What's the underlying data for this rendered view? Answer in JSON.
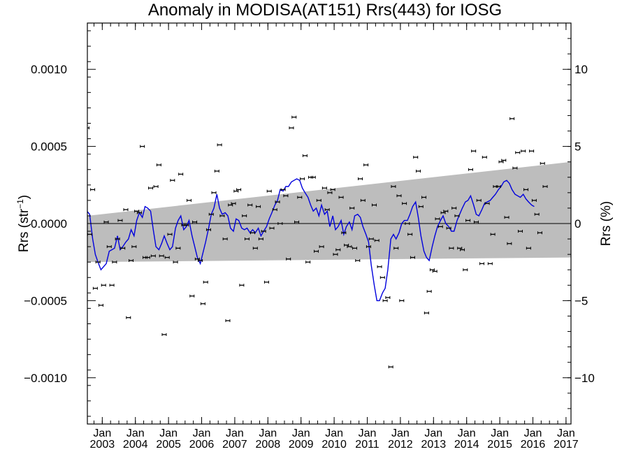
{
  "chart_data": {
    "type": "scatter",
    "title": "Anomaly in MODISA(AT151) Rrs(443) for IOSG",
    "ylabel_left": {
      "base": "Rrs (str",
      "sup": "−1",
      "close": ")"
    },
    "ylabel_right": "Rrs (%)",
    "ylim_left": [
      -0.0013,
      0.0013
    ],
    "ylim_right": [
      -13,
      13
    ],
    "xlim": [
      2002.55,
      2017.15
    ],
    "left_ticks": [
      {
        "value": 0.001,
        "label": "0.0010"
      },
      {
        "value": 0.0005,
        "label": "0.0005"
      },
      {
        "value": 0.0,
        "label": "0.0000"
      },
      {
        "value": -0.0005,
        "label": "−0.0005"
      },
      {
        "value": -0.001,
        "label": "−0.0010"
      }
    ],
    "right_ticks": [
      {
        "value": 10,
        "label": "10"
      },
      {
        "value": 5,
        "label": "5"
      },
      {
        "value": 0,
        "label": "0"
      },
      {
        "value": -5,
        "label": "−5"
      },
      {
        "value": -10,
        "label": "−10"
      }
    ],
    "x_ticks": [
      {
        "value": 2003.0,
        "month": "Jan",
        "year": "2003"
      },
      {
        "value": 2004.0,
        "month": "Jan",
        "year": "2004"
      },
      {
        "value": 2005.0,
        "month": "Jan",
        "year": "2005"
      },
      {
        "value": 2006.0,
        "month": "Jan",
        "year": "2006"
      },
      {
        "value": 2007.0,
        "month": "Jan",
        "year": "2007"
      },
      {
        "value": 2008.0,
        "month": "Jan",
        "year": "2008"
      },
      {
        "value": 2009.0,
        "month": "Jan",
        "year": "2009"
      },
      {
        "value": 2010.0,
        "month": "Jan",
        "year": "2010"
      },
      {
        "value": 2011.0,
        "month": "Jan",
        "year": "2011"
      },
      {
        "value": 2012.0,
        "month": "Jan",
        "year": "2012"
      },
      {
        "value": 2013.0,
        "month": "Jan",
        "year": "2013"
      },
      {
        "value": 2014.0,
        "month": "Jan",
        "year": "2014"
      },
      {
        "value": 2015.0,
        "month": "Jan",
        "year": "2015"
      },
      {
        "value": 2016.0,
        "month": "Jan",
        "year": "2016"
      },
      {
        "value": 2017.0,
        "month": "Jan",
        "year": "2017"
      }
    ],
    "grey_band": {
      "upper": [
        [
          2002.55,
          5e-05
        ],
        [
          2017.15,
          0.0004
        ]
      ],
      "lower": [
        [
          2002.55,
          -0.00025
        ],
        [
          2017.15,
          -0.00022
        ]
      ]
    },
    "zero_line": 0,
    "colors": {
      "band": "#bdbdbd",
      "running_mean": "#0000dd",
      "points": "#000000"
    },
    "monthly_points": [
      [
        2002.54,
        0.00062
      ],
      [
        2002.62,
        -7e-05
      ],
      [
        2002.71,
        0.00022
      ],
      [
        2002.79,
        -0.00042
      ],
      [
        2002.87,
        -0.00025
      ],
      [
        2002.96,
        -0.00053
      ],
      [
        2003.04,
        -0.0004
      ],
      [
        2003.12,
        1e-05
      ],
      [
        2003.21,
        -0.00015
      ],
      [
        2003.29,
        -0.0004
      ],
      [
        2003.37,
        -0.00025
      ],
      [
        2003.46,
        -0.0001
      ],
      [
        2003.54,
        2e-05
      ],
      [
        2003.62,
        -0.00016
      ],
      [
        2003.71,
        9e-05
      ],
      [
        2003.79,
        -0.00061
      ],
      [
        2003.87,
        -0.00024
      ],
      [
        2003.96,
        -0.00015
      ],
      [
        2004.04,
        8e-05
      ],
      [
        2004.12,
        7e-05
      ],
      [
        2004.21,
        0.0005
      ],
      [
        2004.29,
        -0.00022
      ],
      [
        2004.37,
        -0.00022
      ],
      [
        2004.46,
        0.00023
      ],
      [
        2004.54,
        -0.00021
      ],
      [
        2004.62,
        0.00024
      ],
      [
        2004.71,
        0.00038
      ],
      [
        2004.79,
        -0.00021
      ],
      [
        2004.87,
        -0.00072
      ],
      [
        2004.96,
        -0.00022
      ],
      [
        2005.04,
        -7e-05
      ],
      [
        2005.12,
        0.00028
      ],
      [
        2005.21,
        -0.00025
      ],
      [
        2005.29,
        -0.00016
      ],
      [
        2005.37,
        0.00032
      ],
      [
        2005.46,
        -1e-05
      ],
      [
        2005.54,
        -1e-05
      ],
      [
        2005.62,
        0.00015
      ],
      [
        2005.71,
        -0.00047
      ],
      [
        2005.79,
        1e-05
      ],
      [
        2005.87,
        -0.00023
      ],
      [
        2005.96,
        -0.00024
      ],
      [
        2006.04,
        -0.00052
      ],
      [
        2006.12,
        -0.00038
      ],
      [
        2006.21,
        -4e-05
      ],
      [
        2006.29,
        6e-05
      ],
      [
        2006.37,
        0.0002
      ],
      [
        2006.46,
        0.00034
      ],
      [
        2006.54,
        0.00051
      ],
      [
        2006.62,
        5e-05
      ],
      [
        2006.71,
        -0.0001
      ],
      [
        2006.79,
        -0.00063
      ],
      [
        2006.87,
        0.00012
      ],
      [
        2006.96,
        0.00013
      ],
      [
        2007.04,
        0.00021
      ],
      [
        2007.12,
        0.00022
      ],
      [
        2007.21,
        -0.0004
      ],
      [
        2007.29,
        5e-05
      ],
      [
        2007.37,
        -0.0001
      ],
      [
        2007.46,
        0.00012
      ],
      [
        2007.54,
        -6e-05
      ],
      [
        2007.62,
        -0.00016
      ],
      [
        2007.71,
        0.00011
      ],
      [
        2007.79,
        -0.0001
      ],
      [
        2007.87,
        -5e-05
      ],
      [
        2007.96,
        -0.00038
      ],
      [
        2008.04,
        0.00021
      ],
      [
        2008.12,
        -3e-05
      ],
      [
        2008.21,
        9e-05
      ],
      [
        2008.29,
        0.00014
      ],
      [
        2008.37,
        0.0
      ],
      [
        2008.46,
        0.00022
      ],
      [
        2008.54,
        0.00018
      ],
      [
        2008.62,
        -0.00023
      ],
      [
        2008.71,
        0.00062
      ],
      [
        2008.79,
        0.00069
      ],
      [
        2008.87,
        1e-05
      ],
      [
        2008.96,
        0.00017
      ],
      [
        2009.04,
        0.00029
      ],
      [
        2009.12,
        0.00044
      ],
      [
        2009.21,
        -0.00025
      ],
      [
        2009.29,
        0.0003
      ],
      [
        2009.37,
        0.0003
      ],
      [
        2009.46,
        -0.00018
      ],
      [
        2009.54,
        0.00015
      ],
      [
        2009.62,
        -0.00015
      ],
      [
        2009.71,
        0.00023
      ],
      [
        2009.79,
        9e-05
      ],
      [
        2009.87,
        0.0002
      ],
      [
        2009.96,
        0.00022
      ],
      [
        2010.04,
        -0.0002
      ],
      [
        2010.12,
        -0.00017
      ],
      [
        2010.21,
        0.00017
      ],
      [
        2010.29,
        -6e-05
      ],
      [
        2010.37,
        -0.00014
      ],
      [
        2010.46,
        -0.00015
      ],
      [
        2010.54,
        0.0001
      ],
      [
        2010.62,
        -0.00016
      ],
      [
        2010.71,
        -0.00024
      ],
      [
        2010.79,
        0.00029
      ],
      [
        2010.87,
        0.00015
      ],
      [
        2010.96,
        0.00038
      ],
      [
        2011.04,
        -0.00015
      ],
      [
        2011.12,
        -0.0001
      ],
      [
        2011.21,
        0.00012
      ],
      [
        2011.29,
        -0.00011
      ],
      [
        2011.37,
        -0.00028
      ],
      [
        2011.46,
        -0.00035
      ],
      [
        2011.54,
        -0.0005
      ],
      [
        2011.62,
        -0.00048
      ],
      [
        2011.71,
        -0.00093
      ],
      [
        2011.79,
        0.00024
      ],
      [
        2011.87,
        -0.00016
      ],
      [
        2011.96,
        0.00018
      ],
      [
        2012.04,
        -0.0005
      ],
      [
        2012.12,
        0.00013
      ],
      [
        2012.21,
        0.0
      ],
      [
        2012.29,
        -7e-05
      ],
      [
        2012.37,
        -0.00022
      ],
      [
        2012.46,
        0.00043
      ],
      [
        2012.54,
        0.00034
      ],
      [
        2012.62,
        0.00011
      ],
      [
        2012.71,
        0.00017
      ],
      [
        2012.79,
        -0.00058
      ],
      [
        2012.87,
        -0.00044
      ],
      [
        2012.96,
        -0.0003
      ],
      [
        2013.04,
        -0.00031
      ],
      [
        2013.12,
        3e-05
      ],
      [
        2013.21,
        -2e-05
      ],
      [
        2013.29,
        7e-05
      ],
      [
        2013.37,
        8e-05
      ],
      [
        2013.46,
        -3e-05
      ],
      [
        2013.54,
        -0.00016
      ],
      [
        2013.62,
        0.0001
      ],
      [
        2013.71,
        5e-05
      ],
      [
        2013.79,
        -0.00016
      ],
      [
        2013.87,
        -0.00017
      ],
      [
        2013.96,
        -0.0003
      ],
      [
        2014.04,
        2e-05
      ],
      [
        2014.12,
        0.00035
      ],
      [
        2014.21,
        0.00047
      ],
      [
        2014.29,
        1e-05
      ],
      [
        2014.37,
        0.00015
      ],
      [
        2014.46,
        -0.00026
      ],
      [
        2014.54,
        0.00043
      ],
      [
        2014.62,
        0.00013
      ],
      [
        2014.71,
        -0.00026
      ],
      [
        2014.79,
        -7e-05
      ],
      [
        2014.87,
        0.00024
      ],
      [
        2014.96,
        0.00024
      ],
      [
        2015.04,
        0.0004
      ],
      [
        2015.12,
        0.00041
      ],
      [
        2015.21,
        4e-05
      ],
      [
        2015.29,
        -0.00013
      ],
      [
        2015.37,
        0.00068
      ],
      [
        2015.46,
        0.00036
      ],
      [
        2015.54,
        0.00046
      ],
      [
        2015.62,
        -5e-05
      ],
      [
        2015.71,
        0.00047
      ],
      [
        2015.79,
        0.00022
      ],
      [
        2015.87,
        -0.00016
      ],
      [
        2015.96,
        0.00047
      ],
      [
        2016.04,
        0.00015
      ],
      [
        2016.12,
        6e-05
      ],
      [
        2016.21,
        -6e-05
      ],
      [
        2016.29,
        0.00039
      ],
      [
        2016.37,
        0.00024
      ]
    ],
    "running_mean": [
      [
        2002.54,
        8e-05
      ],
      [
        2002.62,
        6e-05
      ],
      [
        2002.71,
        -0.0001
      ],
      [
        2002.79,
        -0.0002
      ],
      [
        2002.87,
        -0.00025
      ],
      [
        2002.96,
        -0.0003
      ],
      [
        2003.04,
        -0.00028
      ],
      [
        2003.12,
        -0.00026
      ],
      [
        2003.21,
        -0.00018
      ],
      [
        2003.29,
        -0.00017
      ],
      [
        2003.37,
        -0.00016
      ],
      [
        2003.46,
        -8e-05
      ],
      [
        2003.54,
        -0.00017
      ],
      [
        2003.62,
        -0.00015
      ],
      [
        2003.71,
        -0.00012
      ],
      [
        2003.79,
        -0.0001
      ],
      [
        2003.87,
        -4e-05
      ],
      [
        2003.96,
        -8e-05
      ],
      [
        2004.04,
        2e-05
      ],
      [
        2004.12,
        7e-05
      ],
      [
        2004.21,
        4e-05
      ],
      [
        2004.29,
        0.00011
      ],
      [
        2004.37,
        0.0001
      ],
      [
        2004.46,
        8e-05
      ],
      [
        2004.54,
        -4e-05
      ],
      [
        2004.62,
        -0.00015
      ],
      [
        2004.71,
        -0.00017
      ],
      [
        2004.79,
        -0.00013
      ],
      [
        2004.87,
        -8e-05
      ],
      [
        2004.96,
        -0.00013
      ],
      [
        2005.04,
        -0.00017
      ],
      [
        2005.12,
        -0.00015
      ],
      [
        2005.21,
        -3e-05
      ],
      [
        2005.29,
        2e-05
      ],
      [
        2005.37,
        5e-05
      ],
      [
        2005.46,
        -4e-05
      ],
      [
        2005.54,
        -2e-05
      ],
      [
        2005.62,
        2e-05
      ],
      [
        2005.71,
        -8e-05
      ],
      [
        2005.79,
        -0.00015
      ],
      [
        2005.87,
        -0.00022
      ],
      [
        2005.96,
        -0.00026
      ],
      [
        2006.04,
        -0.00019
      ],
      [
        2006.12,
        -0.00012
      ],
      [
        2006.21,
        -3e-05
      ],
      [
        2006.29,
        6e-05
      ],
      [
        2006.37,
        0.0001
      ],
      [
        2006.46,
        0.00019
      ],
      [
        2006.54,
        0.0001
      ],
      [
        2006.62,
        6e-05
      ],
      [
        2006.71,
        7e-05
      ],
      [
        2006.79,
        5e-05
      ],
      [
        2006.87,
        -3e-05
      ],
      [
        2006.96,
        -5e-05
      ],
      [
        2007.04,
        3e-05
      ],
      [
        2007.12,
        2e-05
      ],
      [
        2007.21,
        -3e-05
      ],
      [
        2007.29,
        -4e-05
      ],
      [
        2007.37,
        -3e-05
      ],
      [
        2007.46,
        -6e-05
      ],
      [
        2007.54,
        -4e-05
      ],
      [
        2007.62,
        -6e-05
      ],
      [
        2007.71,
        -3e-05
      ],
      [
        2007.79,
        -8e-05
      ],
      [
        2007.87,
        -5e-05
      ],
      [
        2007.96,
        -2e-05
      ],
      [
        2008.04,
        3e-05
      ],
      [
        2008.12,
        7e-05
      ],
      [
        2008.21,
        0.00012
      ],
      [
        2008.29,
        0.00015
      ],
      [
        2008.37,
        0.00022
      ],
      [
        2008.46,
        0.00021
      ],
      [
        2008.54,
        0.00024
      ],
      [
        2008.62,
        0.00024
      ],
      [
        2008.71,
        0.00027
      ],
      [
        2008.79,
        0.00028
      ],
      [
        2008.87,
        0.00029
      ],
      [
        2008.96,
        0.00028
      ],
      [
        2009.04,
        0.00023
      ],
      [
        2009.12,
        0.0002
      ],
      [
        2009.21,
        0.00017
      ],
      [
        2009.29,
        0.00012
      ],
      [
        2009.37,
        8e-05
      ],
      [
        2009.46,
        0.0001
      ],
      [
        2009.54,
        5e-05
      ],
      [
        2009.62,
        0.00012
      ],
      [
        2009.71,
        6e-05
      ],
      [
        2009.79,
        8e-05
      ],
      [
        2009.87,
        -2e-05
      ],
      [
        2009.96,
        5e-05
      ],
      [
        2010.04,
        -4e-05
      ],
      [
        2010.12,
        -2e-05
      ],
      [
        2010.21,
        2e-05
      ],
      [
        2010.29,
        -7e-05
      ],
      [
        2010.37,
        -2e-05
      ],
      [
        2010.46,
        1e-05
      ],
      [
        2010.54,
        -4e-05
      ],
      [
        2010.62,
        5e-05
      ],
      [
        2010.71,
        6e-05
      ],
      [
        2010.79,
        4e-05
      ],
      [
        2010.87,
        -2e-05
      ],
      [
        2010.96,
        -7e-05
      ],
      [
        2011.04,
        -0.00012
      ],
      [
        2011.12,
        -0.00027
      ],
      [
        2011.21,
        -0.0004
      ],
      [
        2011.29,
        -0.0005
      ],
      [
        2011.37,
        -0.0005
      ],
      [
        2011.46,
        -0.00045
      ],
      [
        2011.54,
        -0.00042
      ],
      [
        2011.62,
        -0.0003
      ],
      [
        2011.71,
        -0.0001
      ],
      [
        2011.79,
        -7e-05
      ],
      [
        2011.87,
        -0.0001
      ],
      [
        2011.96,
        -6e-05
      ],
      [
        2012.04,
        0.0
      ],
      [
        2012.12,
        2e-05
      ],
      [
        2012.21,
        2e-05
      ],
      [
        2012.29,
        6e-05
      ],
      [
        2012.37,
        0.00011
      ],
      [
        2012.46,
        0.00014
      ],
      [
        2012.54,
        4e-05
      ],
      [
        2012.62,
        -8e-05
      ],
      [
        2012.71,
        -0.00018
      ],
      [
        2012.79,
        -0.00022
      ],
      [
        2012.87,
        -0.00024
      ],
      [
        2012.96,
        -0.00015
      ],
      [
        2013.04,
        -8e-05
      ],
      [
        2013.12,
        -2e-05
      ],
      [
        2013.21,
        2e-05
      ],
      [
        2013.29,
        5e-05
      ],
      [
        2013.37,
        0.0
      ],
      [
        2013.46,
        -2e-05
      ],
      [
        2013.54,
        -5e-05
      ],
      [
        2013.62,
        -5e-05
      ],
      [
        2013.71,
        2e-05
      ],
      [
        2013.79,
        6e-05
      ],
      [
        2013.87,
        0.0001
      ],
      [
        2013.96,
        0.00014
      ],
      [
        2014.04,
        0.00015
      ],
      [
        2014.12,
        0.00018
      ],
      [
        2014.21,
        0.00012
      ],
      [
        2014.29,
        6e-05
      ],
      [
        2014.37,
        5e-05
      ],
      [
        2014.46,
        9e-05
      ],
      [
        2014.54,
        0.00013
      ],
      [
        2014.62,
        0.00014
      ],
      [
        2014.71,
        0.00015
      ],
      [
        2014.79,
        0.00017
      ],
      [
        2014.87,
        0.00019
      ],
      [
        2014.96,
        0.00022
      ],
      [
        2015.04,
        0.00024
      ],
      [
        2015.12,
        0.00027
      ],
      [
        2015.21,
        0.00028
      ],
      [
        2015.29,
        0.00026
      ],
      [
        2015.37,
        0.00022
      ],
      [
        2015.46,
        0.00019
      ],
      [
        2015.54,
        0.00018
      ],
      [
        2015.62,
        0.00017
      ],
      [
        2015.71,
        0.00019
      ],
      [
        2015.79,
        0.00016
      ],
      [
        2015.87,
        0.00014
      ],
      [
        2015.96,
        0.00012
      ],
      [
        2016.04,
        0.00011
      ]
    ]
  }
}
